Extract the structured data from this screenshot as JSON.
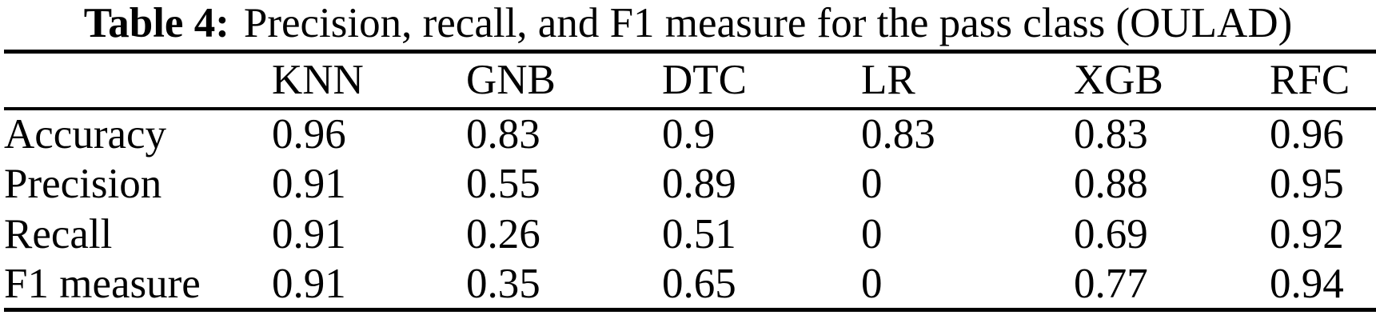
{
  "caption": {
    "label": "Table 4:",
    "text": "Precision, recall, and F1 measure for the pass class (OULAD)"
  },
  "table": {
    "columns": [
      "",
      "KNN",
      "GNB",
      "DTC",
      "LR",
      "XGB",
      "RFC"
    ],
    "rows": [
      {
        "label": "Accuracy",
        "values": [
          "0.96",
          "0.83",
          "0.9",
          "0.83",
          "0.83",
          "0.96"
        ]
      },
      {
        "label": "Precision",
        "values": [
          "0.91",
          "0.55",
          "0.89",
          "0",
          "0.88",
          "0.95"
        ]
      },
      {
        "label": "Recall",
        "values": [
          "0.91",
          "0.26",
          "0.51",
          "0",
          "0.69",
          "0.92"
        ]
      },
      {
        "label": "F1 measure",
        "values": [
          "0.91",
          "0.35",
          "0.65",
          "0",
          "0.77",
          "0.94"
        ]
      }
    ]
  },
  "colors": {
    "text": "#000000",
    "background": "#ffffff",
    "rule": "#000000"
  }
}
